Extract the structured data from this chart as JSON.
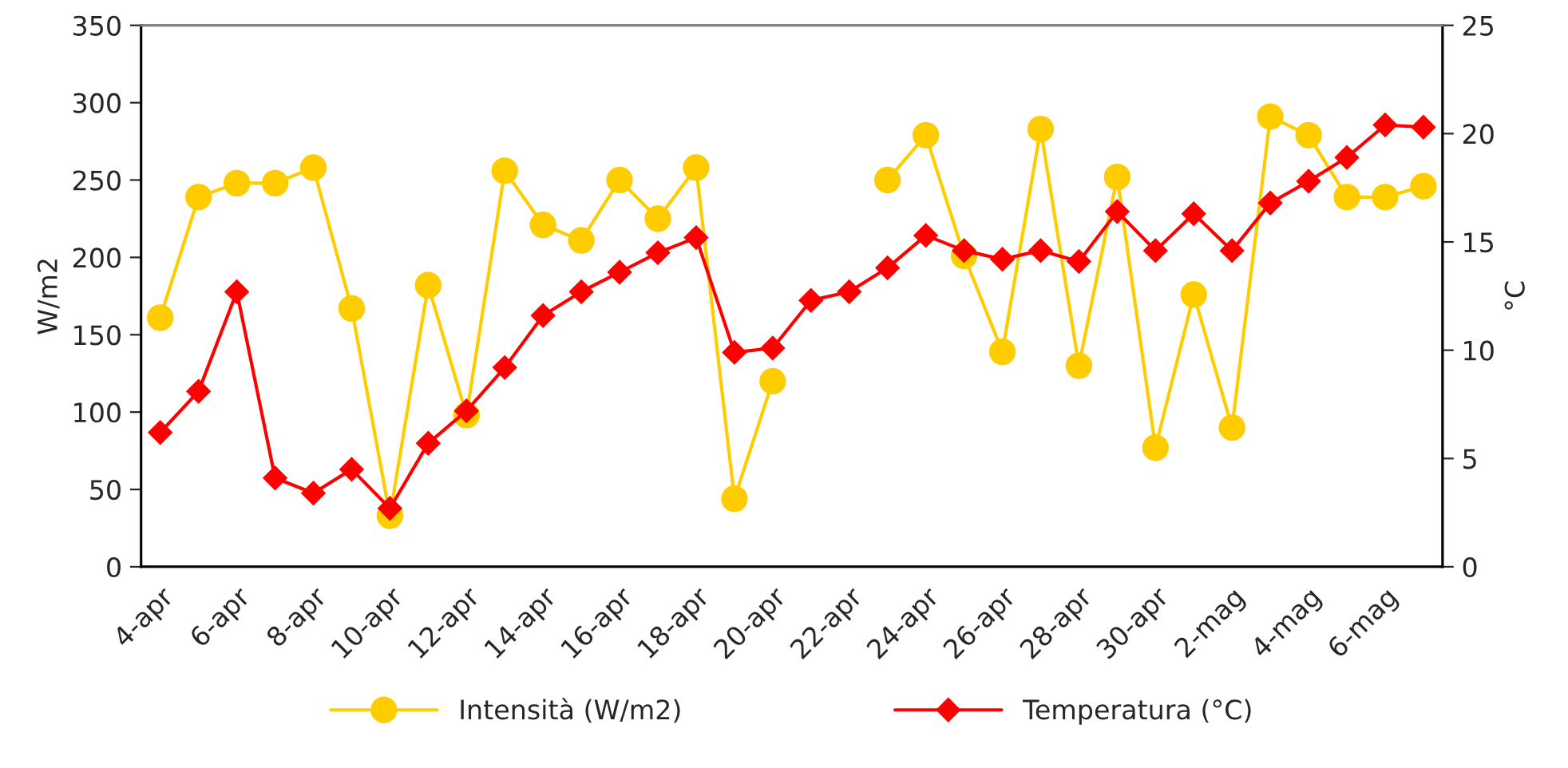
{
  "chart_data": {
    "type": "line",
    "categories": [
      "4-apr",
      null,
      "6-apr",
      null,
      "8-apr",
      null,
      "10-apr",
      null,
      "12-apr",
      null,
      "14-apr",
      null,
      "16-apr",
      null,
      "18-apr",
      null,
      "20-apr",
      null,
      "22-apr",
      null,
      "24-apr",
      null,
      "26-apr",
      null,
      "28-apr",
      null,
      "30-apr",
      null,
      "2-mag",
      null,
      "4-mag",
      null,
      "6-mag",
      null
    ],
    "ylabel": "W/m2",
    "y2label": "°C",
    "ylim": [
      0,
      350
    ],
    "yticks": [
      0,
      50,
      100,
      150,
      200,
      250,
      300,
      350
    ],
    "y2lim": [
      0,
      25
    ],
    "y2ticks": [
      0,
      5,
      10,
      15,
      20,
      25
    ],
    "legend": "bottom",
    "grid": false,
    "series": [
      {
        "name": "Intensità (W/m2)",
        "color": "#ffcc00",
        "marker": "circle",
        "values": [
          161,
          239,
          248,
          248,
          258,
          167,
          33,
          182,
          98,
          256,
          221,
          211,
          250,
          225,
          258,
          44,
          120,
          null,
          null,
          250,
          279,
          201,
          139,
          283,
          130,
          252,
          77,
          176,
          90,
          291,
          279,
          239,
          239,
          246
        ]
      },
      {
        "name": "Temperatura (°C)",
        "color": "#ff0000",
        "marker": "diamond",
        "axis": "y2",
        "values": [
          6.2,
          8.1,
          12.7,
          4.1,
          3.4,
          4.5,
          2.7,
          5.7,
          7.2,
          9.2,
          11.6,
          12.7,
          13.6,
          14.5,
          15.2,
          9.9,
          10.1,
          12.3,
          12.7,
          13.8,
          15.3,
          14.6,
          14.2,
          14.6,
          14.1,
          16.4,
          14.6,
          16.3,
          14.6,
          16.8,
          17.8,
          18.9,
          20.4,
          20.3
        ]
      }
    ]
  }
}
